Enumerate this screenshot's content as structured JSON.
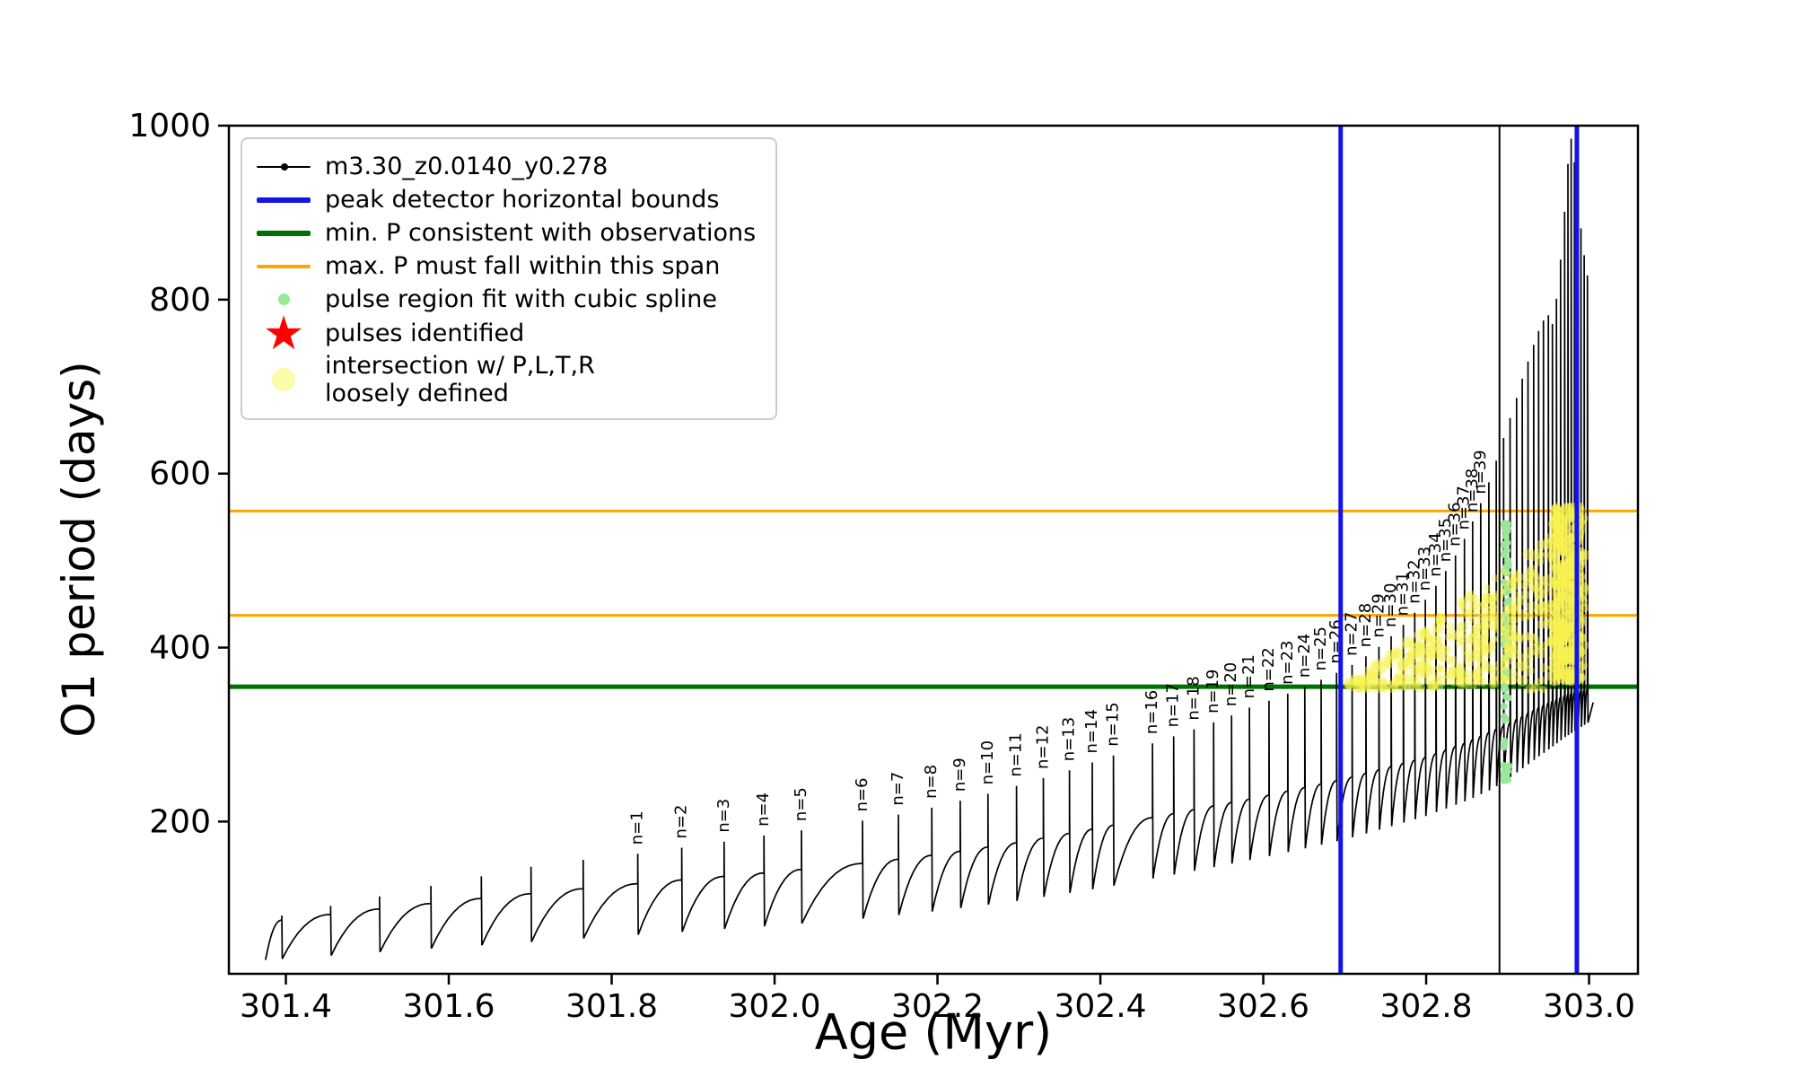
{
  "figure": {
    "background": "#ffffff"
  },
  "chart_data": {
    "type": "line",
    "title": "",
    "xlabel": "Age (Myr)",
    "ylabel": "O1 period (days)",
    "xlim": [
      301.33,
      303.06
    ],
    "ylim": [
      25,
      1000
    ],
    "xticks": [
      "301.4",
      "301.6",
      "301.8",
      "302.0",
      "302.2",
      "302.4",
      "302.6",
      "302.8",
      "303.0"
    ],
    "ytick_values": [
      200,
      400,
      600,
      800,
      1000
    ],
    "series_name": "m3.30_z0.0140_y0.278",
    "colors": {
      "series": "#000000",
      "blue_bound": "#1414e8",
      "min_p_green": "#007000",
      "max_p_orange": "#ffa500",
      "spline_green": "#98e898",
      "pulse_red": "#ff0000",
      "intersection_yellow": "#f8f250"
    },
    "baseline": [
      [
        301.35,
        82
      ],
      [
        301.5,
        98
      ],
      [
        301.6,
        108
      ],
      [
        301.7,
        117
      ],
      [
        301.8,
        126
      ],
      [
        301.9,
        134
      ],
      [
        302.0,
        142
      ],
      [
        302.1,
        151
      ],
      [
        302.2,
        162
      ],
      [
        302.3,
        176
      ],
      [
        302.4,
        193
      ],
      [
        302.5,
        211
      ],
      [
        302.6,
        229
      ],
      [
        302.7,
        249
      ],
      [
        302.8,
        274
      ],
      [
        302.85,
        291
      ],
      [
        302.9,
        312
      ],
      [
        302.94,
        332
      ],
      [
        302.97,
        345
      ],
      [
        303.01,
        356
      ]
    ],
    "dip_fraction": [
      [
        301.35,
        0.48
      ],
      [
        301.8,
        0.54
      ],
      [
        302.1,
        0.58
      ],
      [
        302.4,
        0.64
      ],
      [
        302.7,
        0.72
      ],
      [
        302.88,
        0.78
      ],
      [
        302.95,
        0.84
      ],
      [
        303.01,
        0.9
      ]
    ],
    "pulses": [
      [
        301.395,
        92,
        ""
      ],
      [
        301.455,
        103,
        ""
      ],
      [
        301.515,
        114,
        ""
      ],
      [
        301.578,
        126,
        ""
      ],
      [
        301.64,
        137,
        ""
      ],
      [
        301.701,
        148,
        ""
      ],
      [
        301.765,
        156,
        ""
      ],
      [
        301.832,
        163,
        "n=1"
      ],
      [
        301.886,
        170,
        "n=2"
      ],
      [
        301.938,
        177,
        "n=3"
      ],
      [
        301.987,
        184,
        "n=4"
      ],
      [
        302.033,
        190,
        "n=5"
      ],
      [
        302.108,
        201,
        "n=6"
      ],
      [
        302.152,
        208,
        "n=7"
      ],
      [
        302.193,
        216,
        "n=8"
      ],
      [
        302.228,
        224,
        "n=9"
      ],
      [
        302.262,
        232,
        "n=10"
      ],
      [
        302.297,
        241,
        "n=11"
      ],
      [
        302.33,
        250,
        "n=12"
      ],
      [
        302.362,
        259,
        "n=13"
      ],
      [
        302.39,
        268,
        "n=14"
      ],
      [
        302.416,
        276,
        "n=15"
      ],
      [
        302.464,
        290,
        "n=16"
      ],
      [
        302.49,
        298,
        "n=17"
      ],
      [
        302.515,
        306,
        "n=18"
      ],
      [
        302.539,
        314,
        "n=19"
      ],
      [
        302.561,
        322,
        "n=20"
      ],
      [
        302.583,
        331,
        "n=21"
      ],
      [
        302.607,
        339,
        "n=22"
      ],
      [
        302.63,
        347,
        "n=23"
      ],
      [
        302.651,
        355,
        "n=24"
      ],
      [
        302.671,
        363,
        "n=25"
      ],
      [
        302.69,
        371,
        "n=26"
      ],
      [
        302.709,
        380,
        "n=27"
      ],
      [
        302.726,
        390,
        "n=28"
      ],
      [
        302.742,
        401,
        "n=29"
      ],
      [
        302.757,
        413,
        "n=30"
      ],
      [
        302.772,
        426,
        "n=31"
      ],
      [
        302.786,
        440,
        "n=32"
      ],
      [
        302.799,
        455,
        "n=33"
      ],
      [
        302.812,
        471,
        "n=34"
      ],
      [
        302.824,
        488,
        "n=35"
      ],
      [
        302.836,
        506,
        "n=36"
      ],
      [
        302.847,
        525,
        "n=37"
      ],
      [
        302.857,
        545,
        "n=38"
      ],
      [
        302.867,
        566,
        "n=39"
      ],
      [
        302.877,
        590,
        ""
      ],
      [
        302.886,
        615,
        ""
      ],
      [
        302.895,
        641,
        ""
      ],
      [
        302.903,
        664,
        ""
      ],
      [
        302.911,
        687,
        ""
      ],
      [
        302.918,
        709,
        ""
      ],
      [
        302.925,
        729,
        ""
      ],
      [
        302.932,
        748,
        ""
      ],
      [
        302.938,
        764,
        ""
      ],
      [
        302.944,
        776,
        ""
      ],
      [
        302.95,
        782,
        ""
      ],
      [
        302.955,
        772,
        ""
      ],
      [
        302.96,
        801,
        ""
      ],
      [
        302.965,
        846,
        ""
      ],
      [
        302.97,
        901,
        ""
      ],
      [
        302.974,
        956,
        ""
      ],
      [
        302.978,
        985,
        ""
      ],
      [
        302.982,
        958,
        ""
      ],
      [
        302.986,
        920,
        ""
      ],
      [
        302.99,
        882,
        ""
      ],
      [
        302.994,
        851,
        ""
      ],
      [
        302.998,
        828,
        ""
      ]
    ],
    "vlines": [
      {
        "x": 302.695,
        "color": "#1414e8",
        "width": 5,
        "name": "peak-detector-left-bound"
      },
      {
        "x": 302.985,
        "color": "#1414e8",
        "width": 5,
        "name": "peak-detector-right-bound"
      },
      {
        "x": 302.89,
        "color": "#000000",
        "width": 2,
        "name": "black-marker-line"
      }
    ],
    "hlines": [
      {
        "y": 557,
        "color": "#ffa500",
        "width": 3,
        "name": "max-p-upper"
      },
      {
        "y": 437,
        "color": "#ffa500",
        "width": 3,
        "name": "max-p-lower"
      },
      {
        "y": 355,
        "color": "#007000",
        "width": 5,
        "name": "min-p-observed"
      }
    ],
    "scatter_regions": {
      "yellow_wedge": {
        "x0": 302.703,
        "x1": 302.995,
        "y_bottom": 352,
        "top_start": 358,
        "top_end": 555,
        "count": 470
      },
      "yellow_streak": {
        "x0": 302.956,
        "x1": 302.99,
        "y0": 358,
        "y1": 563,
        "count": 280
      },
      "green_streak": {
        "x": 302.898,
        "half_width": 0.0035,
        "y0": 246,
        "y1": 544,
        "count": 75
      }
    },
    "legend": {
      "entries": [
        {
          "marker": "line-dot",
          "color": "#000000",
          "label": "m3.30_z0.0140_y0.278"
        },
        {
          "marker": "thick-line",
          "color": "#1414e8",
          "label": "peak detector horizontal bounds"
        },
        {
          "marker": "thick-line",
          "color": "#007000",
          "label": "min. P consistent with observations"
        },
        {
          "marker": "line",
          "color": "#ffa500",
          "label": "max. P must fall within this span"
        },
        {
          "marker": "small-dot",
          "color": "#98e898",
          "label": "pulse region fit with cubic spline"
        },
        {
          "marker": "star",
          "color": "#ff0000",
          "label": "pulses identified"
        },
        {
          "marker": "big-dot",
          "color": "#fbfba8",
          "label": "intersection w/ P,L,T,R\nloosely defined"
        }
      ]
    }
  }
}
